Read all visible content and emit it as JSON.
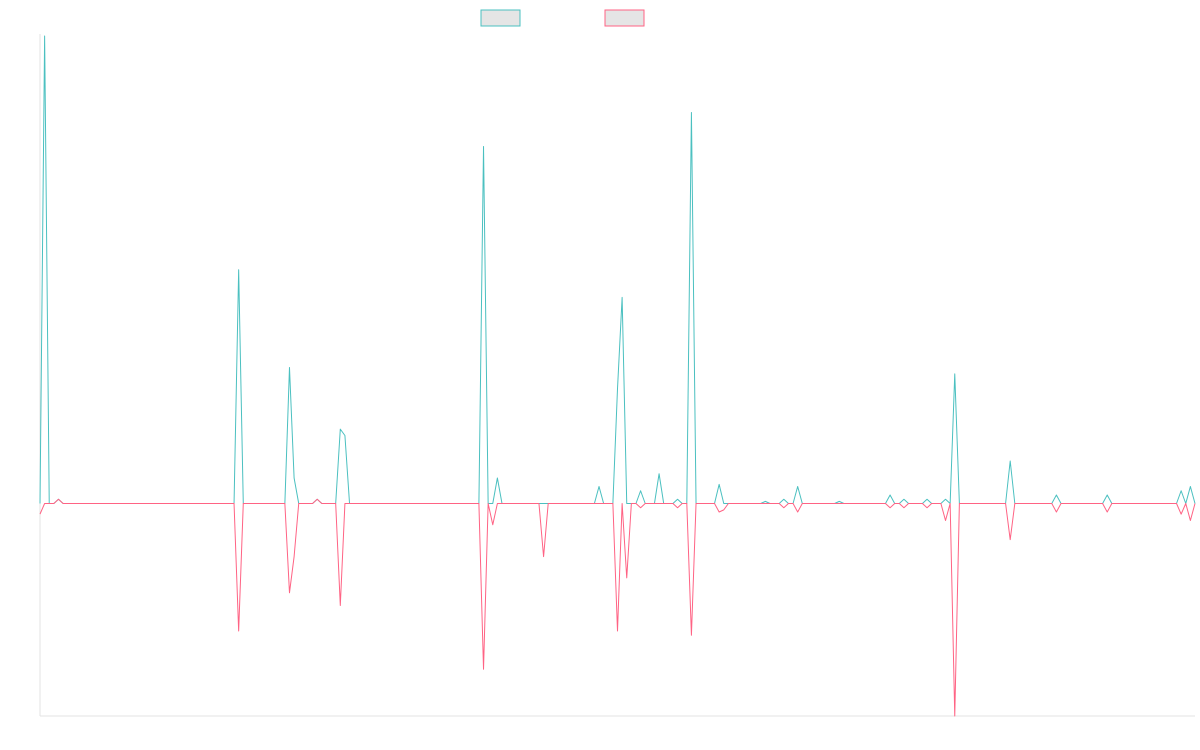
{
  "chart_data": {
    "type": "line",
    "title": "",
    "xlabel": "",
    "ylabel": "",
    "grid": false,
    "legend_position": "top-center",
    "x_count": 250,
    "ylim": [
      -1.0,
      2.2
    ],
    "series": [
      {
        "color": "#4bc0c0",
        "fill": "#e5e5e5",
        "points": [
          [
            0,
            0.0
          ],
          [
            1,
            2.2
          ],
          [
            2,
            0.0
          ],
          [
            3,
            0.0
          ],
          [
            4,
            0.02
          ],
          [
            5,
            0.0
          ],
          [
            42,
            0.0
          ],
          [
            43,
            1.1
          ],
          [
            44,
            0.0
          ],
          [
            53,
            0.0
          ],
          [
            54,
            0.64
          ],
          [
            55,
            0.12
          ],
          [
            56,
            0.0
          ],
          [
            59,
            0.0
          ],
          [
            60,
            0.02
          ],
          [
            61,
            0.0
          ],
          [
            64,
            0.0
          ],
          [
            65,
            0.35
          ],
          [
            66,
            0.32
          ],
          [
            67,
            0.0
          ],
          [
            95,
            0.0
          ],
          [
            96,
            1.68
          ],
          [
            97,
            0.0
          ],
          [
            98,
            0.0
          ],
          [
            99,
            0.12
          ],
          [
            100,
            0.0
          ],
          [
            120,
            0.0
          ],
          [
            121,
            0.08
          ],
          [
            122,
            0.0
          ],
          [
            124,
            0.0
          ],
          [
            125,
            0.54
          ],
          [
            126,
            0.97
          ],
          [
            127,
            0.0
          ],
          [
            129,
            0.0
          ],
          [
            130,
            0.06
          ],
          [
            131,
            0.0
          ],
          [
            133,
            0.0
          ],
          [
            134,
            0.14
          ],
          [
            135,
            0.0
          ],
          [
            137,
            0.0
          ],
          [
            138,
            0.02
          ],
          [
            139,
            0.0
          ],
          [
            140,
            0.0
          ],
          [
            141,
            1.84
          ],
          [
            142,
            0.0
          ],
          [
            146,
            0.0
          ],
          [
            147,
            0.09
          ],
          [
            148,
            0.0
          ],
          [
            156,
            0.0
          ],
          [
            157,
            0.01
          ],
          [
            158,
            0.0
          ],
          [
            160,
            0.0
          ],
          [
            161,
            0.02
          ],
          [
            162,
            0.0
          ],
          [
            163,
            0.0
          ],
          [
            164,
            0.08
          ],
          [
            165,
            0.0
          ],
          [
            172,
            0.0
          ],
          [
            173,
            0.01
          ],
          [
            174,
            0.0
          ],
          [
            183,
            0.0
          ],
          [
            184,
            0.04
          ],
          [
            185,
            0.0
          ],
          [
            186,
            0.0
          ],
          [
            187,
            0.02
          ],
          [
            188,
            0.0
          ],
          [
            191,
            0.0
          ],
          [
            192,
            0.02
          ],
          [
            193,
            0.0
          ],
          [
            195,
            0.0
          ],
          [
            196,
            0.02
          ],
          [
            197,
            0.0
          ],
          [
            198,
            0.61
          ],
          [
            199,
            0.0
          ],
          [
            209,
            0.0
          ],
          [
            210,
            0.2
          ],
          [
            211,
            0.0
          ],
          [
            219,
            0.0
          ],
          [
            220,
            0.04
          ],
          [
            221,
            0.0
          ],
          [
            230,
            0.0
          ],
          [
            231,
            0.04
          ],
          [
            232,
            0.0
          ],
          [
            246,
            0.0
          ],
          [
            247,
            0.06
          ],
          [
            248,
            0.0
          ],
          [
            249,
            0.08
          ],
          [
            250,
            0.0
          ]
        ]
      },
      {
        "color": "#ff6384",
        "fill": "#e5e5e5",
        "points": [
          [
            0,
            -0.05
          ],
          [
            1,
            0.0
          ],
          [
            2,
            0.0
          ],
          [
            3,
            0.0
          ],
          [
            4,
            0.02
          ],
          [
            5,
            0.0
          ],
          [
            42,
            0.0
          ],
          [
            43,
            -0.6
          ],
          [
            44,
            0.0
          ],
          [
            53,
            0.0
          ],
          [
            54,
            -0.42
          ],
          [
            55,
            -0.25
          ],
          [
            56,
            0.0
          ],
          [
            59,
            0.0
          ],
          [
            60,
            0.02
          ],
          [
            61,
            0.0
          ],
          [
            64,
            0.0
          ],
          [
            65,
            -0.48
          ],
          [
            66,
            0.0
          ],
          [
            95,
            0.0
          ],
          [
            96,
            -0.78
          ],
          [
            97,
            0.0
          ],
          [
            98,
            -0.1
          ],
          [
            99,
            0.0
          ],
          [
            108,
            0.0
          ],
          [
            109,
            -0.25
          ],
          [
            110,
            0.0
          ],
          [
            124,
            0.0
          ],
          [
            125,
            -0.6
          ],
          [
            126,
            0.0
          ],
          [
            127,
            -0.35
          ],
          [
            128,
            0.0
          ],
          [
            129,
            0.0
          ],
          [
            130,
            -0.02
          ],
          [
            131,
            0.0
          ],
          [
            137,
            0.0
          ],
          [
            138,
            -0.02
          ],
          [
            139,
            0.0
          ],
          [
            140,
            0.0
          ],
          [
            141,
            -0.62
          ],
          [
            142,
            0.0
          ],
          [
            146,
            0.0
          ],
          [
            147,
            -0.04
          ],
          [
            148,
            -0.03
          ],
          [
            149,
            0.0
          ],
          [
            160,
            0.0
          ],
          [
            161,
            -0.02
          ],
          [
            162,
            0.0
          ],
          [
            163,
            0.0
          ],
          [
            164,
            -0.04
          ],
          [
            165,
            0.0
          ],
          [
            183,
            0.0
          ],
          [
            184,
            -0.02
          ],
          [
            185,
            0.0
          ],
          [
            186,
            0.0
          ],
          [
            187,
            -0.02
          ],
          [
            188,
            0.0
          ],
          [
            191,
            0.0
          ],
          [
            192,
            -0.02
          ],
          [
            193,
            0.0
          ],
          [
            195,
            0.0
          ],
          [
            196,
            -0.08
          ],
          [
            197,
            0.0
          ],
          [
            198,
            -1.0
          ],
          [
            199,
            0.0
          ],
          [
            209,
            0.0
          ],
          [
            210,
            -0.17
          ],
          [
            211,
            0.0
          ],
          [
            219,
            0.0
          ],
          [
            220,
            -0.04
          ],
          [
            221,
            0.0
          ],
          [
            230,
            0.0
          ],
          [
            231,
            -0.04
          ],
          [
            232,
            0.0
          ],
          [
            246,
            0.0
          ],
          [
            247,
            -0.05
          ],
          [
            248,
            0.0
          ],
          [
            249,
            -0.08
          ],
          [
            250,
            0.0
          ]
        ]
      }
    ]
  }
}
